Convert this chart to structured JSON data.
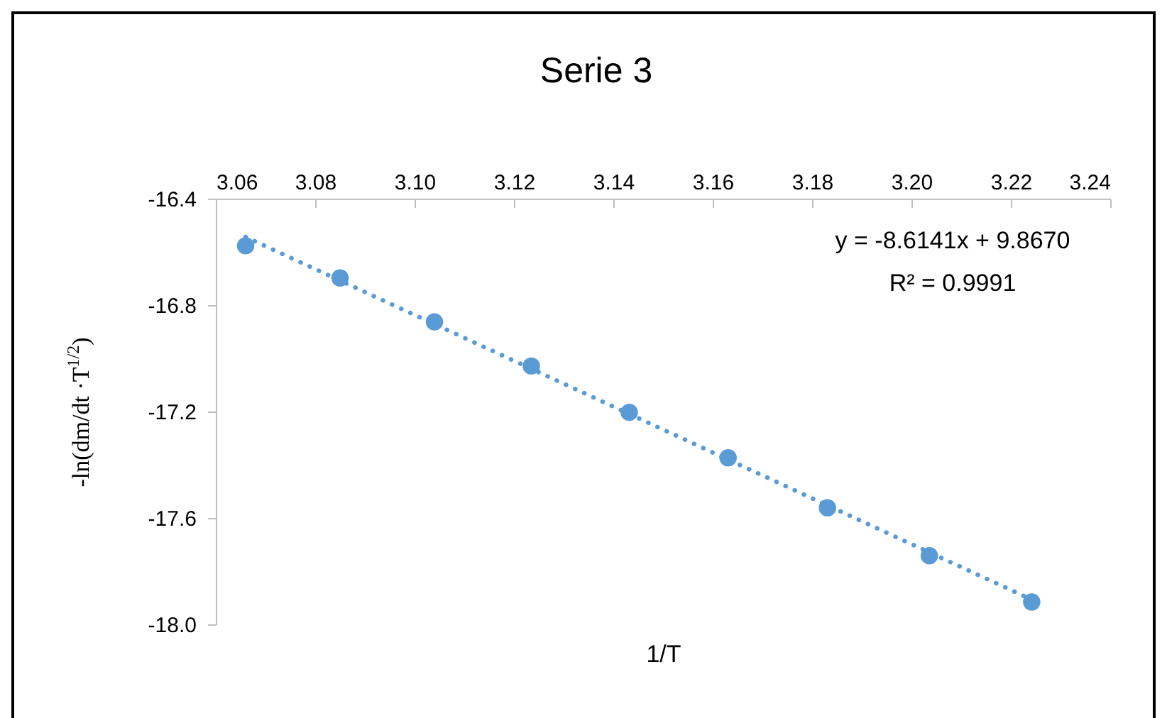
{
  "chart_data": {
    "type": "scatter",
    "title": "Serie 3",
    "xlabel": "1/T",
    "ylabel": "-ln(dm/dt ·T$^{1/2}$)",
    "annotations": [
      "y = -8.6141x + 9.8670",
      "R² = 0.9991"
    ],
    "xlim": [
      3.06,
      3.24
    ],
    "xticks": [
      {
        "value": 3.06,
        "label": "3.06"
      },
      {
        "value": 3.08,
        "label": "3.08"
      },
      {
        "value": 3.1,
        "label": "3.10"
      },
      {
        "value": 3.12,
        "label": "3.12"
      },
      {
        "value": 3.14,
        "label": "3.14"
      },
      {
        "value": 3.16,
        "label": "3.16"
      },
      {
        "value": 3.18,
        "label": "3.18"
      },
      {
        "value": 3.2,
        "label": "3.20"
      },
      {
        "value": 3.22,
        "label": "3.22"
      },
      {
        "value": 3.24,
        "label": "3.24"
      }
    ],
    "ylim": [
      -18.0,
      -16.4
    ],
    "yticks": [
      {
        "value": -18.0,
        "label": "-18.0"
      },
      {
        "value": -17.6,
        "label": "-17.6"
      },
      {
        "value": -17.2,
        "label": "-17.2"
      },
      {
        "value": -16.8,
        "label": "-16.8"
      },
      {
        "value": -16.4,
        "label": "-16.4"
      }
    ],
    "marker": "circle",
    "series": [
      {
        "color": "#5b9bd5",
        "x": [
          3.066,
          3.085,
          3.104,
          3.1235,
          3.1432,
          3.1631,
          3.1831,
          3.2036,
          3.2242
        ],
        "values": [
          -16.577,
          -16.698,
          -16.863,
          -17.029,
          -17.203,
          -17.374,
          -17.562,
          -17.742,
          -17.916
        ]
      },
      {
        "type": "line",
        "marker": "none",
        "line_style": "dotted",
        "color": "#5b9bd5",
        "x": [
          3.066,
          3.2242
        ],
        "values": [
          -16.544,
          -17.907
        ]
      }
    ]
  }
}
